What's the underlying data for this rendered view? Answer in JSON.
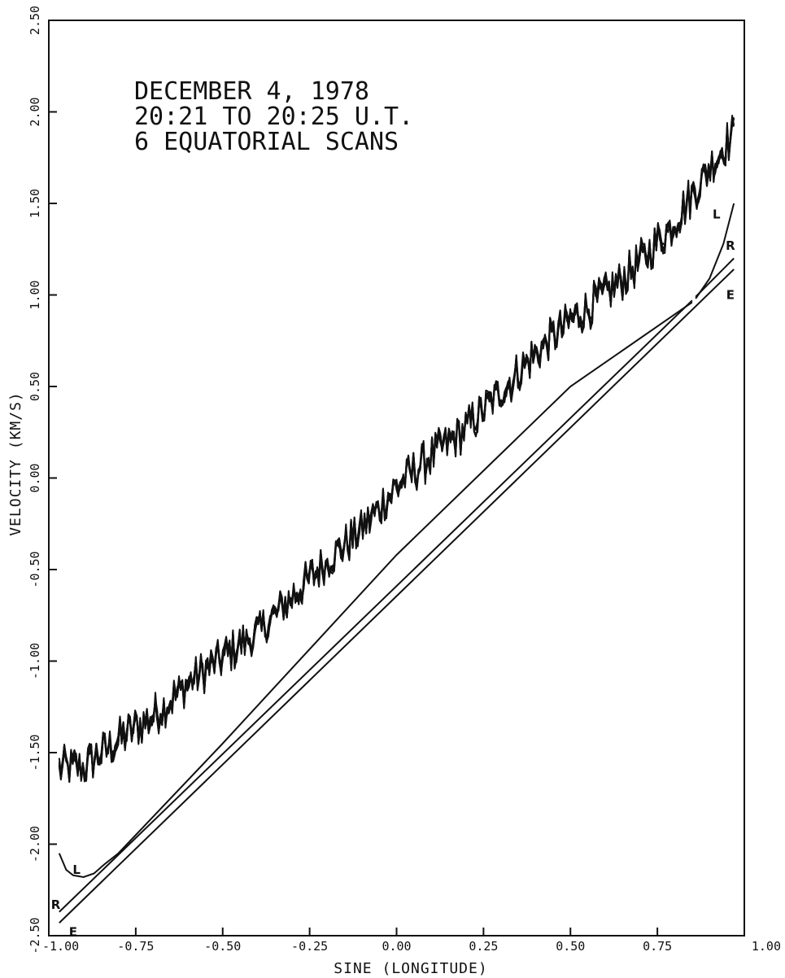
{
  "chart_data": {
    "type": "line",
    "title": "",
    "xlabel": "SINE (LONGITUDE)",
    "ylabel": "VELOCITY (KM/S)",
    "xlim": [
      -1.0,
      1.0
    ],
    "ylim": [
      -2.5,
      2.5
    ],
    "x_ticks": [
      "-1.00",
      "-0.75",
      "-0.50",
      "-0.25",
      "0.00",
      "0.25",
      "0.50",
      "0.75",
      "1.00"
    ],
    "y_ticks": [
      "-2.50",
      "-2.00",
      "-1.50",
      "-1.00",
      "-0.50",
      "0.00",
      "0.50",
      "1.00",
      "1.50",
      "2.00",
      "2.50"
    ],
    "grid": false,
    "annotation": [
      "DECEMBER 4, 1978",
      "20:21 TO 20:25 U.T.",
      "6 EQUATORIAL SCANS"
    ],
    "observed_scans": {
      "count": 6,
      "x": [
        -0.97,
        -0.9,
        -0.8,
        -0.7,
        -0.6,
        -0.5,
        -0.4,
        -0.3,
        -0.2,
        -0.1,
        0.0,
        0.1,
        0.2,
        0.3,
        0.4,
        0.5,
        0.6,
        0.7,
        0.8,
        0.9,
        0.97
      ],
      "y": [
        -1.58,
        -1.58,
        -1.43,
        -1.3,
        -1.12,
        -0.98,
        -0.85,
        -0.65,
        -0.45,
        -0.28,
        -0.05,
        0.12,
        0.27,
        0.47,
        0.68,
        0.86,
        1.0,
        1.18,
        1.4,
        1.7,
        1.88
      ],
      "noise_amplitude": 0.1
    },
    "series": [
      {
        "name": "L",
        "segments": [
          {
            "x": [
              -0.97,
              -0.95,
              -0.93,
              -0.9,
              -0.87,
              -0.84,
              -0.8,
              -0.76
            ],
            "y": [
              -2.05,
              -2.14,
              -2.17,
              -2.18,
              -2.16,
              -2.11,
              -2.05,
              -1.97
            ]
          },
          {
            "x": [
              -0.76,
              -0.5,
              0.0,
              0.5,
              0.85
            ],
            "y": [
              -1.97,
              -1.45,
              -0.42,
              0.5,
              0.96
            ]
          },
          {
            "x": [
              0.86,
              0.9,
              0.94,
              0.97
            ],
            "y": [
              0.98,
              1.09,
              1.28,
              1.5
            ]
          }
        ]
      },
      {
        "name": "R",
        "segments": [
          {
            "x": [
              -0.97,
              0.85
            ],
            "y": [
              -2.37,
              0.97
            ]
          },
          {
            "x": [
              0.86,
              0.97
            ],
            "y": [
              0.99,
              1.2
            ]
          }
        ]
      },
      {
        "name": "E",
        "segments": [
          {
            "x": [
              -0.97,
              0.97
            ],
            "y": [
              -2.43,
              1.14
            ]
          }
        ]
      }
    ],
    "curve_labels": [
      {
        "text": "L",
        "x": -0.92,
        "y": -2.14
      },
      {
        "text": "R",
        "x": -0.98,
        "y": -2.33
      },
      {
        "text": "E",
        "x": -0.93,
        "y": -2.48
      },
      {
        "text": "L",
        "x": 0.92,
        "y": 1.44
      },
      {
        "text": "R",
        "x": 0.96,
        "y": 1.27
      },
      {
        "text": "E",
        "x": 0.96,
        "y": 1.0
      }
    ]
  }
}
